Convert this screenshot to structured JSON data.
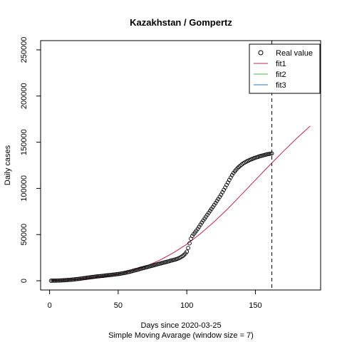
{
  "chart_data": {
    "type": "line",
    "title": "Kazakhstan / Gompertz",
    "xlabel": "Days since 2020-03-25",
    "subtitle": "Simple Moving Avarage (window size = 7)",
    "ylabel": "Daily cases",
    "xlim": [
      1,
      190
    ],
    "ylim": [
      0,
      250000
    ],
    "x_ticks": [
      0,
      50,
      100,
      150
    ],
    "y_ticks": [
      0,
      50000,
      100000,
      150000,
      200000,
      250000
    ],
    "y_tick_labels": [
      "0",
      "50000",
      "100000",
      "150000",
      "200000",
      "250000"
    ],
    "grid": false,
    "legend_position": "top-right",
    "vline_x": 162,
    "series": [
      {
        "name": "Real value",
        "style": "points",
        "color": "#000000",
        "x": [
          1,
          2,
          3,
          4,
          5,
          6,
          7,
          8,
          9,
          10,
          11,
          12,
          13,
          14,
          15,
          16,
          17,
          18,
          19,
          20,
          21,
          22,
          23,
          24,
          25,
          26,
          27,
          28,
          29,
          30,
          31,
          32,
          33,
          34,
          35,
          36,
          37,
          38,
          39,
          40,
          41,
          42,
          43,
          44,
          45,
          46,
          47,
          48,
          49,
          50,
          51,
          52,
          53,
          54,
          55,
          56,
          57,
          58,
          59,
          60,
          61,
          62,
          63,
          64,
          65,
          66,
          67,
          68,
          69,
          70,
          71,
          72,
          73,
          74,
          75,
          76,
          77,
          78,
          79,
          80,
          81,
          82,
          83,
          84,
          85,
          86,
          87,
          88,
          89,
          90,
          91,
          92,
          93,
          94,
          95,
          96,
          97,
          98,
          99,
          100,
          101,
          102,
          103,
          104,
          105,
          106,
          107,
          108,
          109,
          110,
          111,
          112,
          113,
          114,
          115,
          116,
          117,
          118,
          119,
          120,
          121,
          122,
          123,
          124,
          125,
          126,
          127,
          128,
          129,
          130,
          131,
          132,
          133,
          134,
          135,
          136,
          137,
          138,
          139,
          140,
          141,
          142,
          143,
          144,
          145,
          146,
          147,
          148,
          149,
          150,
          151,
          152,
          153,
          154,
          155,
          156,
          157,
          158,
          159,
          160,
          161,
          162
        ],
        "y": [
          60,
          80,
          110,
          140,
          180,
          230,
          290,
          360,
          430,
          510,
          600,
          700,
          810,
          920,
          1040,
          1170,
          1310,
          1460,
          1620,
          1790,
          1970,
          2160,
          2360,
          2560,
          2770,
          2980,
          3190,
          3400,
          3600,
          3800,
          4000,
          4200,
          4380,
          4560,
          4730,
          4900,
          5060,
          5220,
          5380,
          5540,
          5700,
          5860,
          6020,
          6200,
          6380,
          6560,
          6740,
          6920,
          7100,
          7300,
          7520,
          7760,
          8020,
          8300,
          8600,
          8920,
          9260,
          9620,
          10000,
          10400,
          10800,
          11200,
          11600,
          12000,
          12400,
          12800,
          13200,
          13600,
          14000,
          14400,
          14800,
          15200,
          15600,
          16000,
          16400,
          16800,
          17200,
          17600,
          18000,
          18400,
          18800,
          19200,
          19600,
          20000,
          20400,
          20800,
          21200,
          21600,
          22000,
          22400,
          22800,
          23200,
          23700,
          24300,
          25000,
          25800,
          26800,
          28000,
          29500,
          31500,
          35500,
          40500,
          45500,
          48500,
          50500,
          52300,
          54200,
          56300,
          58500,
          60800,
          63000,
          65200,
          67300,
          69400,
          71500,
          73600,
          75700,
          77800,
          79900,
          82000,
          84200,
          86400,
          88600,
          90900,
          93300,
          95800,
          98400,
          101000,
          103700,
          106400,
          109100,
          111800,
          114300,
          116600,
          118600,
          120300,
          121900,
          123300,
          124600,
          125800,
          126900,
          127800,
          128700,
          129500,
          130200,
          130900,
          131500,
          132100,
          132700,
          133200,
          133700,
          134200,
          134700,
          135100,
          135500,
          135900,
          136300,
          136700,
          137000,
          137300,
          137600,
          137900
        ],
        "y_is_shown_shape": true
      },
      {
        "name": "fit1",
        "style": "line",
        "color": "#b5285b",
        "x": [
          1,
          10,
          20,
          30,
          40,
          50,
          60,
          70,
          80,
          90,
          100,
          110,
          120,
          130,
          140,
          150,
          160,
          170,
          180,
          190
        ],
        "y": [
          200,
          600,
          1400,
          2700,
          4600,
          7200,
          10800,
          15600,
          22000,
          30000,
          39500,
          51000,
          64000,
          78000,
          93500,
          109000,
          124500,
          139500,
          154000,
          167500
        ]
      },
      {
        "name": "fit2",
        "style": "line",
        "color": "#4daf4a",
        "x": [],
        "y": []
      },
      {
        "name": "fit3",
        "style": "line",
        "color": "#1f78b4",
        "x": [],
        "y": []
      }
    ]
  }
}
